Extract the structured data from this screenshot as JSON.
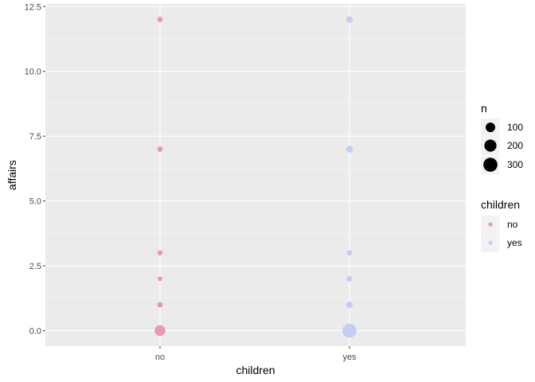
{
  "chart_data": {
    "type": "scatter",
    "title": "",
    "xlabel": "children",
    "ylabel": "affairs",
    "categories": [
      "no",
      "yes"
    ],
    "y_ticks": [
      "0.0",
      "2.5",
      "5.0",
      "7.5",
      "10.0",
      "12.5"
    ],
    "ylim": [
      -0.6,
      12.6
    ],
    "grid": true,
    "legend_position": "right",
    "colors": {
      "no": "#E899B8",
      "yes": "#C5CDF6"
    },
    "series": [
      {
        "name": "no",
        "points": [
          {
            "x": "no",
            "y": 0,
            "n": 144
          },
          {
            "x": "no",
            "y": 1,
            "n": 11
          },
          {
            "x": "no",
            "y": 2,
            "n": 3
          },
          {
            "x": "no",
            "y": 3,
            "n": 8
          },
          {
            "x": "no",
            "y": 7,
            "n": 10
          },
          {
            "x": "no",
            "y": 12,
            "n": 11
          }
        ]
      },
      {
        "name": "yes",
        "points": [
          {
            "x": "yes",
            "y": 0,
            "n": 307
          },
          {
            "x": "yes",
            "y": 1,
            "n": 23
          },
          {
            "x": "yes",
            "y": 2,
            "n": 14
          },
          {
            "x": "yes",
            "y": 3,
            "n": 11
          },
          {
            "x": "yes",
            "y": 7,
            "n": 32
          },
          {
            "x": "yes",
            "y": 12,
            "n": 27
          }
        ]
      }
    ],
    "legends": {
      "size": {
        "title": "n",
        "entries": [
          {
            "label": "100",
            "n": 100
          },
          {
            "label": "200",
            "n": 200
          },
          {
            "label": "300",
            "n": 300
          }
        ]
      },
      "color": {
        "title": "children",
        "entries": [
          {
            "label": "no"
          },
          {
            "label": "yes"
          }
        ]
      }
    }
  }
}
